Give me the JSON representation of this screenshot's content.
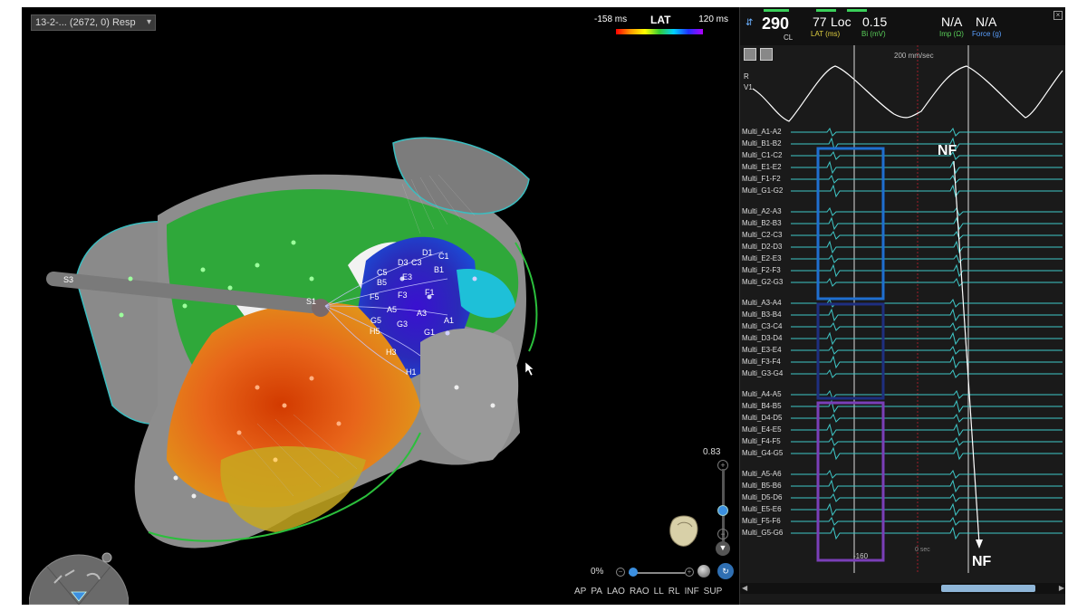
{
  "map": {
    "selector_label": "13-2-... (2672, 0) Resp",
    "lat_legend": {
      "min": "-158 ms",
      "title": "LAT",
      "max": "120 ms",
      "gradient": [
        "#ff0000",
        "#ff9900",
        "#ffff00",
        "#33cc33",
        "#00d0ff",
        "#2030ff",
        "#b000ff"
      ]
    },
    "electrode_labels": [
      "S3",
      "S1",
      "D1",
      "C1",
      "D3",
      "C3",
      "B1",
      "E3",
      "F1",
      "F3",
      "F5",
      "A5",
      "A3",
      "A1",
      "G5",
      "G3",
      "G1",
      "H5",
      "H3",
      "H1",
      "C5",
      "B5"
    ],
    "zoom_value": "0.83",
    "opacity_value": "0%",
    "opacity_level": 0,
    "view_buttons": [
      "AP",
      "PA",
      "LAO",
      "RAO",
      "LL",
      "RL",
      "INF",
      "SUP"
    ]
  },
  "egm": {
    "cycle_length": {
      "value": "290",
      "label": "CL"
    },
    "lat": {
      "value": "77",
      "label": "LAT (ms)"
    },
    "loc": {
      "value": "Loc"
    },
    "bipolar": {
      "value": "0.15",
      "label": "Bi (mV)"
    },
    "impedance": {
      "value": "N/A",
      "label": "Imp (Ω)"
    },
    "force": {
      "value": "N/A",
      "label": "Force (g)"
    },
    "sweep_speed": "200 mm/sec",
    "surface_lead_r": "R",
    "surface_lead": "V1",
    "channel_groups": [
      [
        "Multi_A1-A2",
        "Multi_B1-B2",
        "Multi_C1-C2",
        "Multi_E1-E2",
        "Multi_F1-F2",
        "Multi_G1-G2"
      ],
      [
        "Multi_A2-A3",
        "Multi_B2-B3",
        "Multi_C2-C3",
        "Multi_D2-D3",
        "Multi_E2-E3",
        "Multi_F2-F3",
        "Multi_G2-G3"
      ],
      [
        "Multi_A3-A4",
        "Multi_B3-B4",
        "Multi_C3-C4",
        "Multi_D3-D4",
        "Multi_E3-E4",
        "Multi_F3-F4",
        "Multi_G3-G4"
      ],
      [
        "Multi_A4-A5",
        "Multi_B4-B5",
        "Multi_D4-D5",
        "Multi_E4-E5",
        "Multi_F4-F5",
        "Multi_G4-G5"
      ],
      [
        "Multi_A5-A6",
        "Multi_B5-B6",
        "Multi_D5-D6",
        "Multi_E5-E6",
        "Multi_F5-F6",
        "Multi_G5-G6"
      ]
    ],
    "annotation_top": "NF",
    "annotation_bottom": "NF",
    "marker_value": "-160",
    "zero_sec": "0 sec",
    "box_colors": [
      "#1f6fd0",
      "#1e2f80",
      "#7a3fb8"
    ],
    "trace_color": "#3fc8c8"
  }
}
